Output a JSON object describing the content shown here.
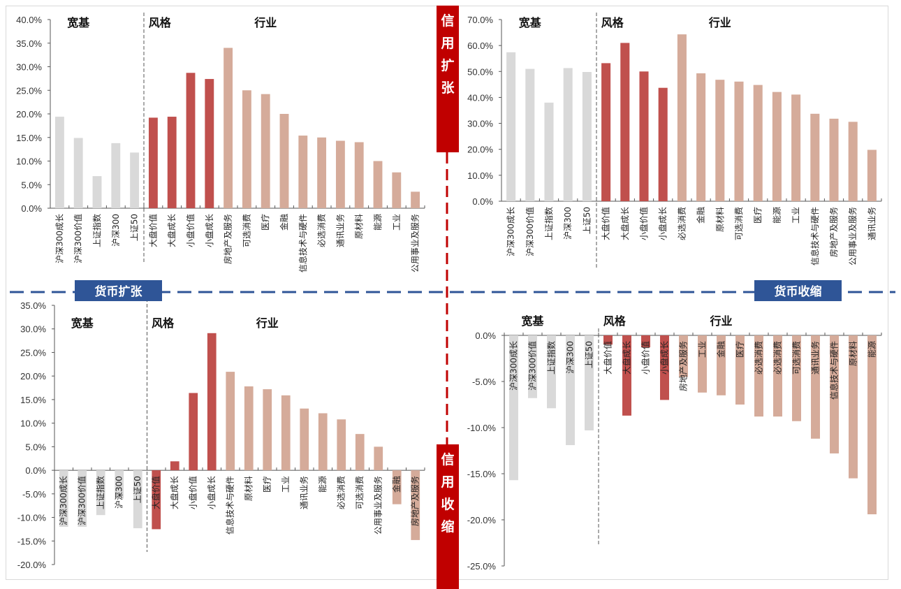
{
  "colors": {
    "broad": "#d9d9d9",
    "style": "#c0504d",
    "industry": "#d5ab9a",
    "credit_box": "#c00000",
    "money_box": "#2f5597",
    "divider_h": "#2f5597",
    "divider_v": "#c00000"
  },
  "quadrant_labels": {
    "credit_expand": "信用扩张",
    "credit_contract": "信用收缩",
    "money_expand": "货币扩张",
    "money_contract": "货币收缩"
  },
  "chart_data": [
    {
      "id": "credit-expand-money-expand",
      "type": "bar",
      "position": "top-left",
      "title": "",
      "groups": [
        {
          "label": "宽基",
          "count": 5
        },
        {
          "label": "风格",
          "count": 4
        },
        {
          "label": "行业",
          "count": 11
        }
      ],
      "categories": [
        "沪深300成长",
        "沪深300价值",
        "上证指数",
        "沪深300",
        "上证50",
        "大盘价值",
        "大盘成长",
        "小盘价值",
        "小盘成长",
        "房地产及服务",
        "可选消费",
        "医疗",
        "金融",
        "信息技术与硬件",
        "必选消费",
        "通讯业务",
        "原材料",
        "能源",
        "工业",
        "公用事业及服务"
      ],
      "values": [
        19.4,
        14.9,
        6.8,
        13.8,
        11.8,
        19.2,
        19.4,
        28.7,
        27.4,
        34.0,
        25.0,
        24.2,
        20.0,
        15.4,
        15.0,
        14.3,
        14.0,
        10.0,
        7.6,
        3.5
      ],
      "ylim": [
        0,
        40
      ],
      "ystep": 5,
      "unit": "%",
      "ytick_labels": [
        "0.0%",
        "5.0%",
        "10.0%",
        "15.0%",
        "20.0%",
        "25.0%",
        "30.0%",
        "35.0%",
        "40.0%"
      ]
    },
    {
      "id": "credit-expand-money-contract",
      "type": "bar",
      "position": "top-right",
      "title": "",
      "groups": [
        {
          "label": "宽基",
          "count": 5
        },
        {
          "label": "风格",
          "count": 4
        },
        {
          "label": "行业",
          "count": 11
        }
      ],
      "categories": [
        "沪深300成长",
        "沪深300价值",
        "上证指数",
        "沪深300",
        "上证50",
        "大盘价值",
        "大盘成长",
        "小盘价值",
        "小盘成长",
        "必选消费",
        "金融",
        "原材料",
        "可选消费",
        "医疗",
        "能源",
        "工业",
        "信息技术与硬件",
        "房地产及服务",
        "公用事业及服务",
        "通讯业务"
      ],
      "values": [
        57.4,
        51.0,
        38.0,
        51.3,
        49.8,
        53.2,
        61.0,
        50.0,
        43.7,
        64.3,
        49.3,
        46.8,
        46.1,
        44.8,
        42.1,
        41.1,
        33.7,
        31.8,
        30.6,
        19.8
      ],
      "ylim": [
        0,
        70
      ],
      "ystep": 10,
      "unit": "%",
      "ytick_labels": [
        "0.0%",
        "10.0%",
        "20.0%",
        "30.0%",
        "40.0%",
        "50.0%",
        "60.0%",
        "70.0%"
      ]
    },
    {
      "id": "credit-contract-money-expand",
      "type": "bar",
      "position": "bottom-left",
      "title": "",
      "groups": [
        {
          "label": "宽基",
          "count": 5
        },
        {
          "label": "风格",
          "count": 4
        },
        {
          "label": "行业",
          "count": 11
        }
      ],
      "categories": [
        "沪深300成长",
        "沪深300价值",
        "上证指数",
        "沪深300",
        "上证50",
        "大盘价值",
        "大盘成长",
        "小盘价值",
        "小盘成长",
        "信息技术与硬件",
        "原材料",
        "医疗",
        "工业",
        "通讯业务",
        "能源",
        "必选消费",
        "可选消费",
        "公用事业及服务",
        "金融",
        "房地产及服务"
      ],
      "values": [
        -12.0,
        -12.0,
        -9.5,
        -6.0,
        -12.3,
        -12.5,
        1.9,
        16.4,
        29.1,
        20.9,
        17.8,
        17.2,
        15.9,
        13.1,
        12.1,
        10.8,
        7.7,
        5.0,
        -7.2,
        -14.8
      ],
      "ylim": [
        -20,
        35
      ],
      "ystep": 5,
      "unit": "%",
      "ytick_labels": [
        "-20.0%",
        "-15.0%",
        "-10.0%",
        "-5.0%",
        "0.0%",
        "5.0%",
        "10.0%",
        "15.0%",
        "20.0%",
        "25.0%",
        "30.0%",
        "35.0%"
      ]
    },
    {
      "id": "credit-contract-money-contract",
      "type": "bar",
      "position": "bottom-right",
      "title": "",
      "groups": [
        {
          "label": "宽基",
          "count": 5
        },
        {
          "label": "风格",
          "count": 4
        },
        {
          "label": "行业",
          "count": 11
        }
      ],
      "categories": [
        "沪深300成长",
        "沪深300价值",
        "上证指数",
        "沪深300",
        "上证50",
        "大盘价值",
        "大盘成长",
        "小盘价值",
        "小盘成长",
        "房地产及服务",
        "工业",
        "金融",
        "医疗",
        "必选消费",
        "必选消费",
        "可选消费",
        "通讯业务",
        "信息技术与硬件",
        "原材料",
        "能源"
      ],
      "values": [
        -15.7,
        -6.8,
        -7.9,
        -11.9,
        -10.3,
        -1.0,
        -8.7,
        -1.3,
        -7.0,
        -4.5,
        -6.2,
        -6.5,
        -7.5,
        -8.8,
        -8.8,
        -9.3,
        -11.2,
        -12.8,
        -15.5,
        -19.4
      ],
      "ylim": [
        -25,
        0
      ],
      "ystep": 5,
      "unit": "%",
      "ytick_labels": [
        "-25.0%",
        "-20.0%",
        "-15.0%",
        "-10.0%",
        "-5.0%",
        "0.0%"
      ]
    }
  ]
}
